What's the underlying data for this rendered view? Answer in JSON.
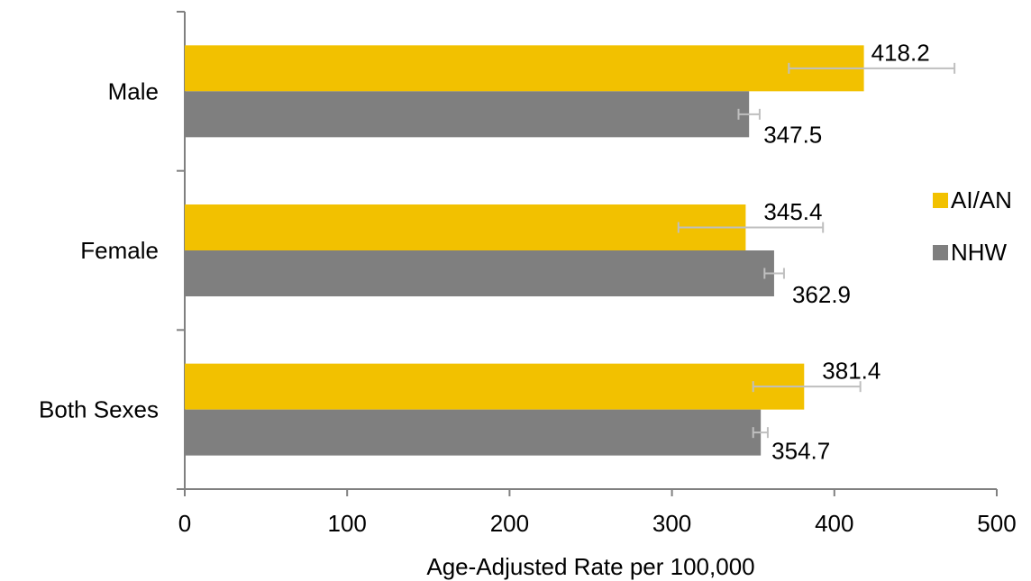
{
  "chart_data": {
    "type": "bar",
    "orientation": "horizontal",
    "categories": [
      "Male",
      "Female",
      "Both Sexes"
    ],
    "series": [
      {
        "name": "AI/AN",
        "color": "#F2C100",
        "values": [
          418.2,
          345.4,
          381.4
        ],
        "value_labels": [
          "418.2",
          "345.4",
          "381.4"
        ],
        "error_low": [
          372,
          304,
          350
        ],
        "error_high": [
          474,
          393,
          416
        ]
      },
      {
        "name": "NHW",
        "color": "#7F7F7F",
        "values": [
          347.5,
          362.9,
          354.7
        ],
        "value_labels": [
          "347.5",
          "362.9",
          "354.7"
        ],
        "error_low": [
          341,
          357,
          350
        ],
        "error_high": [
          354,
          369,
          359
        ]
      }
    ],
    "xlabel": "Age-Adjusted Rate per 100,000",
    "ylabel": "",
    "xlim": [
      0,
      500
    ],
    "xticks": [
      0,
      100,
      200,
      300,
      400,
      500
    ],
    "xtick_labels": [
      "0",
      "100",
      "200",
      "300",
      "400",
      "500"
    ],
    "grid": false,
    "legend": "right",
    "error_bar_color": "#BFBFBF",
    "axis_color": "#808080"
  }
}
